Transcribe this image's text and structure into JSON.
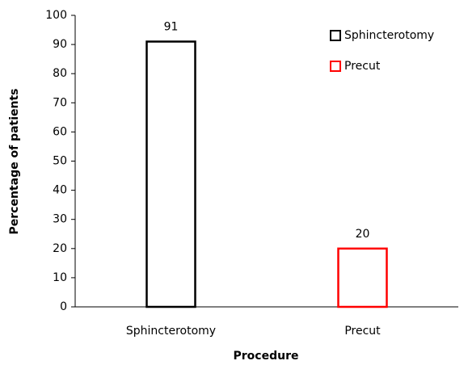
{
  "chart_data": {
    "type": "bar",
    "xlabel": "Procedure",
    "ylabel": "Percentage of patients",
    "categories": [
      "Sphincterotomy",
      "Precut"
    ],
    "series": [
      {
        "name": "Sphincterotomy",
        "color": "#000000",
        "values": [
          91,
          null
        ]
      },
      {
        "name": "Precut",
        "color": "#ff0000",
        "values": [
          null,
          20
        ]
      }
    ],
    "ylim": [
      0,
      100
    ],
    "yticks": [
      0,
      10,
      20,
      30,
      40,
      50,
      60,
      70,
      80,
      90,
      100
    ],
    "grid": false,
    "legend": "upper right"
  }
}
